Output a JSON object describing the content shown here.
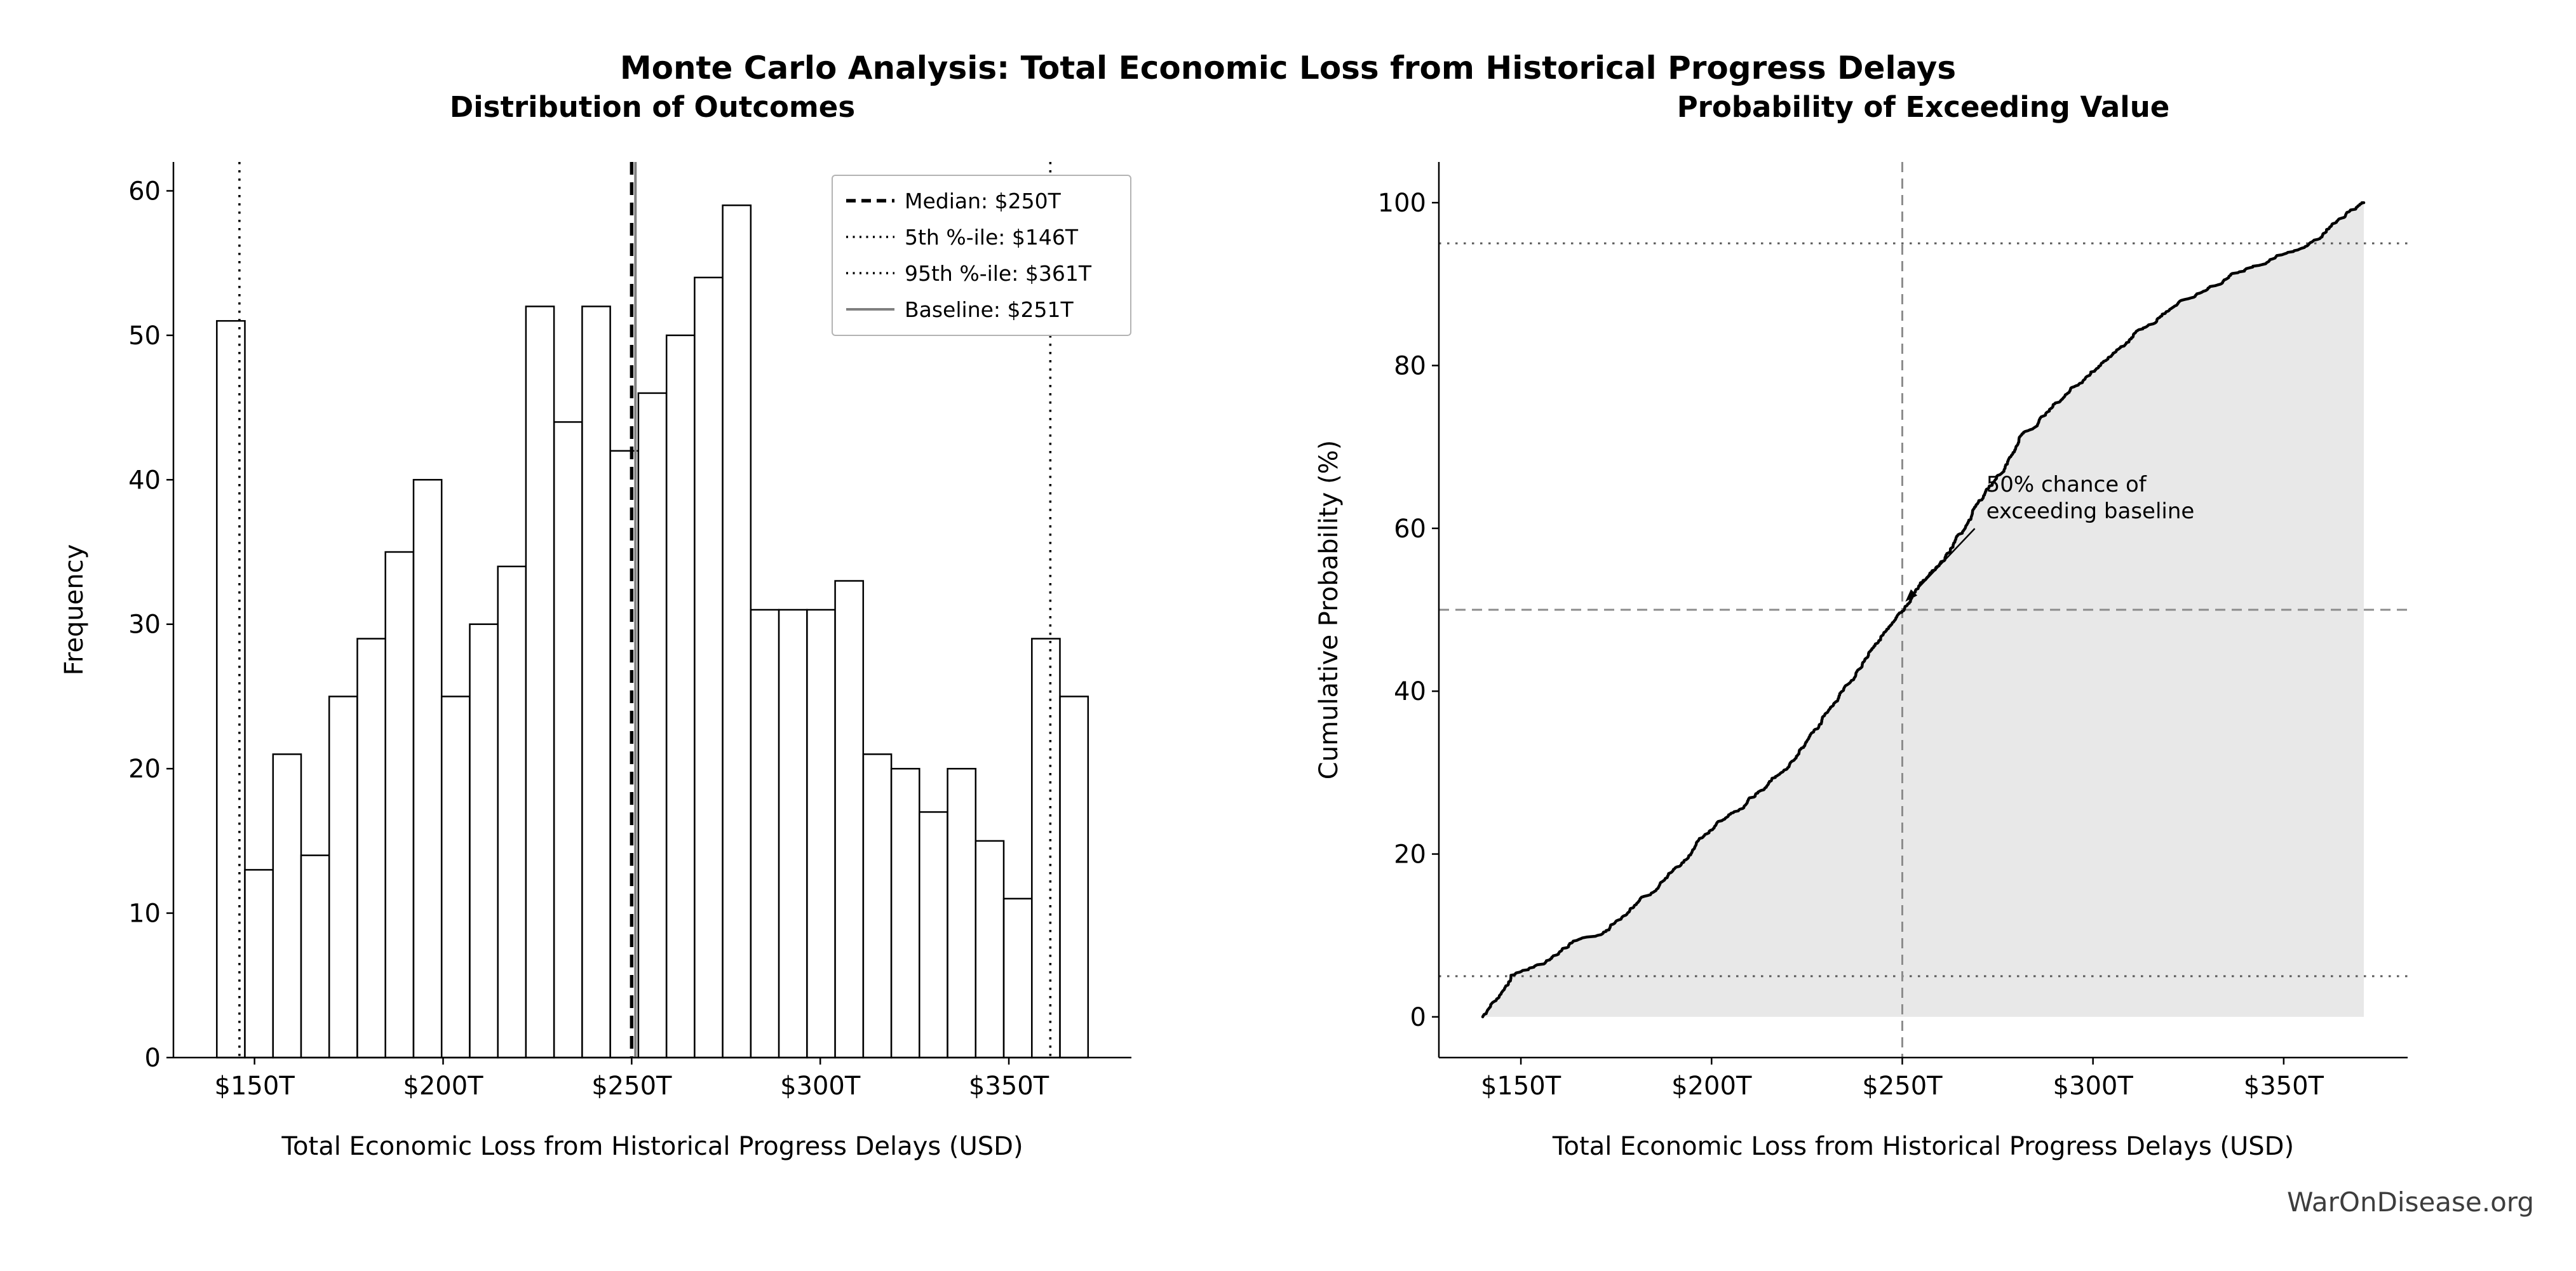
{
  "figure": {
    "title": "Monte Carlo Analysis: Total Economic Loss from Historical Progress Delays",
    "watermark": "WarOnDisease.org"
  },
  "chart_data": [
    {
      "type": "bar",
      "title": "Distribution of Outcomes",
      "xlabel": "Total Economic Loss from Historical Progress Delays (USD)",
      "ylabel": "Frequency",
      "xlim": [
        128.5,
        382.5
      ],
      "ylim": [
        0,
        62
      ],
      "x_ticks": [
        150,
        200,
        250,
        300,
        350
      ],
      "x_tick_labels": [
        "$150T",
        "$200T",
        "$250T",
        "$300T",
        "$350T"
      ],
      "y_ticks": [
        0,
        10,
        20,
        30,
        40,
        50,
        60
      ],
      "bins": {
        "start": 140,
        "width": 7.452
      },
      "counts": [
        51,
        13,
        21,
        14,
        25,
        29,
        35,
        40,
        25,
        30,
        34,
        52,
        44,
        52,
        42,
        46,
        50,
        54,
        59,
        31,
        31,
        31,
        33,
        21,
        20,
        17,
        20,
        15,
        11,
        29,
        25
      ],
      "bar_fill": "#ffffff",
      "bar_edge": "#000000",
      "ref_lines": [
        {
          "label": "Median: $250T",
          "x": 250,
          "style": "dashed",
          "color": "#000000",
          "width": 5.5
        },
        {
          "label": "5th %-ile: $146T",
          "x": 146,
          "style": "dotted",
          "color": "#000000",
          "width": 3.5
        },
        {
          "label": "95th %-ile: $361T",
          "x": 361,
          "style": "dotted",
          "color": "#000000",
          "width": 3.5
        },
        {
          "label": "Baseline: $251T",
          "x": 251,
          "style": "solid",
          "color": "#808080",
          "width": 4
        }
      ],
      "legend_position": "upper right",
      "grid": false
    },
    {
      "type": "line",
      "title": "Probability of Exceeding Value",
      "xlabel": "Total Economic Loss from Historical Progress Delays (USD)",
      "ylabel": "Cumulative Probability (%)",
      "xlim": [
        128.5,
        382.5
      ],
      "ylim": [
        -5,
        105
      ],
      "x_ticks": [
        150,
        200,
        250,
        300,
        350
      ],
      "x_tick_labels": [
        "$150T",
        "$200T",
        "$250T",
        "$300T",
        "$350T"
      ],
      "y_ticks": [
        0,
        20,
        40,
        60,
        80,
        100
      ],
      "x": [
        140.0,
        147.5,
        154.9,
        162.4,
        169.8,
        177.3,
        184.7,
        192.2,
        199.6,
        207.1,
        214.5,
        222.0,
        229.4,
        236.9,
        244.3,
        251.8,
        259.2,
        266.7,
        274.1,
        281.6,
        289.0,
        296.5,
        303.9,
        311.4,
        318.8,
        326.3,
        333.8,
        341.2,
        348.7,
        356.1,
        363.6,
        371.0
      ],
      "y": [
        0,
        5.1,
        6.4,
        8.5,
        9.9,
        12.4,
        15.3,
        18.8,
        22.8,
        25.3,
        28.3,
        31.7,
        36.9,
        41.3,
        46.5,
        50.7,
        55.3,
        60.3,
        65.7,
        71.6,
        74.7,
        77.8,
        80.9,
        84.2,
        86.3,
        88.3,
        90.0,
        92.0,
        93.5,
        94.6,
        97.5,
        100.0
      ],
      "line_color": "#000000",
      "fill_color": "#e8e8e8",
      "ref_lines": {
        "h_dotted": [
          5,
          95
        ],
        "h_dashed": [
          50
        ],
        "v_dashed": [
          250
        ]
      },
      "annotation": {
        "lines": [
          "50% chance of",
          "exceeding baseline"
        ],
        "point": [
          250.8,
          51
        ],
        "text_pos": [
          272,
          64.5
        ]
      },
      "grid": false
    }
  ]
}
